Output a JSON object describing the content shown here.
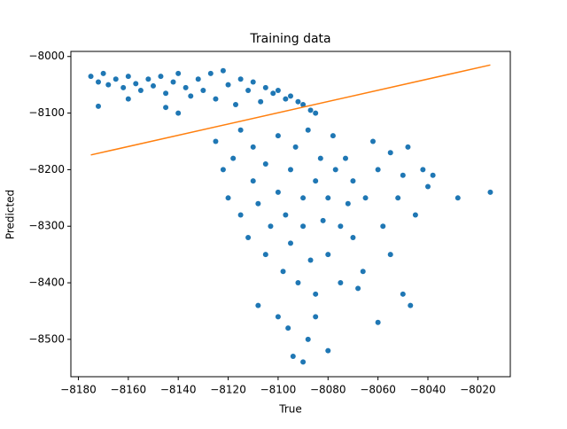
{
  "chart_data": {
    "type": "scatter",
    "title": "Training data",
    "x_label": "True",
    "y_label": "Predicted",
    "xlim": [
      -8183,
      -8007
    ],
    "ylim": [
      -8566,
      -7991
    ],
    "xticks": [
      {
        "value": -8180,
        "label": "−8180"
      },
      {
        "value": -8160,
        "label": "−8160"
      },
      {
        "value": -8140,
        "label": "−8140"
      },
      {
        "value": -8120,
        "label": "−8120"
      },
      {
        "value": -8100,
        "label": "−8100"
      },
      {
        "value": -8080,
        "label": "−8080"
      },
      {
        "value": -8060,
        "label": "−8060"
      },
      {
        "value": -8040,
        "label": "−8040"
      },
      {
        "value": -8020,
        "label": "−8020"
      }
    ],
    "yticks": [
      {
        "value": -8000,
        "label": "−8000"
      },
      {
        "value": -8100,
        "label": "−8100"
      },
      {
        "value": -8200,
        "label": "−8200"
      },
      {
        "value": -8300,
        "label": "−8300"
      },
      {
        "value": -8400,
        "label": "−8400"
      },
      {
        "value": -8500,
        "label": "−8500"
      }
    ],
    "series": [
      {
        "type": "scatter",
        "color": "#1f77b4",
        "x": [
          -8175,
          -8172,
          -8170,
          -8168,
          -8165,
          -8162,
          -8160,
          -8157,
          -8155,
          -8152,
          -8150,
          -8147,
          -8145,
          -8142,
          -8140,
          -8137,
          -8135,
          -8132,
          -8130,
          -8127,
          -8125,
          -8122,
          -8120,
          -8117,
          -8115,
          -8112,
          -8110,
          -8107,
          -8105,
          -8102,
          -8100,
          -8097,
          -8095,
          -8092,
          -8090,
          -8087,
          -8085,
          -8172,
          -8160,
          -8145,
          -8140,
          -8125,
          -8122,
          -8120,
          -8118,
          -8115,
          -8115,
          -8112,
          -8110,
          -8110,
          -8108,
          -8105,
          -8105,
          -8103,
          -8100,
          -8100,
          -8098,
          -8097,
          -8095,
          -8095,
          -8093,
          -8092,
          -8090,
          -8090,
          -8088,
          -8087,
          -8085,
          -8085,
          -8083,
          -8082,
          -8080,
          -8080,
          -8078,
          -8077,
          -8075,
          -8073,
          -8072,
          -8070,
          -8108,
          -8100,
          -8096,
          -8094,
          -8090,
          -8088,
          -8085,
          -8080,
          -8075,
          -8068,
          -8060,
          -8055,
          -8050,
          -8047,
          -8065,
          -8062,
          -8060,
          -8058,
          -8055,
          -8052,
          -8050,
          -8048,
          -8045,
          -8042,
          -8040,
          -8038,
          -8028,
          -8015,
          -8066,
          -8070
        ],
        "values": [
          -8035,
          -8045,
          -8030,
          -8050,
          -8040,
          -8055,
          -8035,
          -8048,
          -8060,
          -8040,
          -8052,
          -8035,
          -8065,
          -8045,
          -8030,
          -8055,
          -8070,
          -8040,
          -8060,
          -8030,
          -8075,
          -8025,
          -8050,
          -8085,
          -8040,
          -8060,
          -8045,
          -8080,
          -8055,
          -8065,
          -8060,
          -8075,
          -8070,
          -8080,
          -8085,
          -8095,
          -8100,
          -8088,
          -8075,
          -8090,
          -8100,
          -8150,
          -8200,
          -8250,
          -8180,
          -8280,
          -8130,
          -8320,
          -8220,
          -8160,
          -8260,
          -8350,
          -8190,
          -8300,
          -8240,
          -8140,
          -8380,
          -8280,
          -8200,
          -8330,
          -8160,
          -8400,
          -8250,
          -8300,
          -8130,
          -8360,
          -8220,
          -8420,
          -8180,
          -8290,
          -8250,
          -8350,
          -8140,
          -8200,
          -8300,
          -8180,
          -8260,
          -8220,
          -8440,
          -8460,
          -8480,
          -8530,
          -8540,
          -8500,
          -8460,
          -8520,
          -8400,
          -8410,
          -8470,
          -8350,
          -8420,
          -8440,
          -8250,
          -8150,
          -8200,
          -8300,
          -8170,
          -8250,
          -8210,
          -8160,
          -8280,
          -8200,
          -8230,
          -8210,
          -8250,
          -8240,
          -8380,
          -8320
        ]
      },
      {
        "type": "line",
        "color": "#ff7f0e",
        "x": [
          -8175,
          -8015
        ],
        "values": [
          -8174,
          -8015
        ]
      }
    ]
  }
}
